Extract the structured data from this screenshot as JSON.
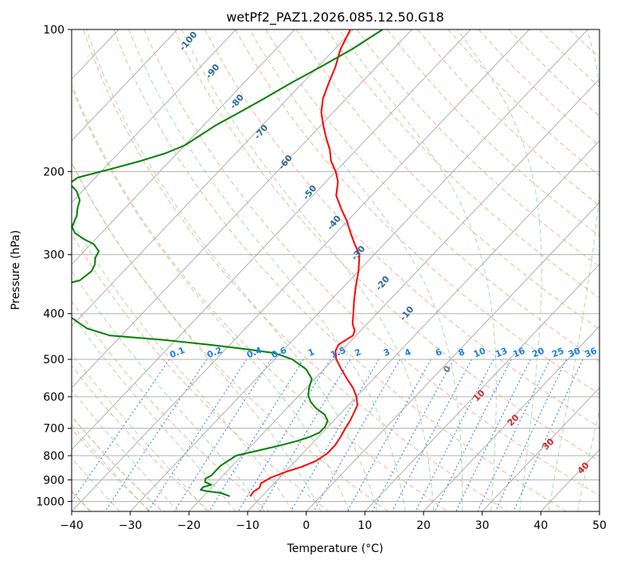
{
  "chart_data": {
    "type": "line",
    "title": "wetPf2_PAZ1.2026.085.12.50.G18",
    "xlabel": "Temperature (°C)",
    "ylabel": "Pressure (hPa)",
    "xlim": [
      -40,
      50
    ],
    "ylim": [
      1050,
      100
    ],
    "x_ticks": [
      -40,
      -30,
      -20,
      -10,
      0,
      10,
      20,
      30,
      40,
      50
    ],
    "y_ticks": [
      100,
      200,
      300,
      400,
      500,
      600,
      700,
      800,
      900,
      1000
    ],
    "grid": true,
    "skew_factor": 0.95,
    "series": [
      {
        "name": "Temperature",
        "color": "#ff0000",
        "points": [
          [
            -12,
            975
          ],
          [
            -12.2,
            955
          ],
          [
            -11.8,
            935
          ],
          [
            -12.3,
            915
          ],
          [
            -11.5,
            890
          ],
          [
            -9.8,
            865
          ],
          [
            -8,
            845
          ],
          [
            -6.5,
            820
          ],
          [
            -5.8,
            790
          ],
          [
            -5.8,
            760
          ],
          [
            -6.2,
            730
          ],
          [
            -6.8,
            700
          ],
          [
            -7.2,
            675
          ],
          [
            -7.8,
            650
          ],
          [
            -8.5,
            625
          ],
          [
            -10,
            600
          ],
          [
            -12,
            575
          ],
          [
            -14.5,
            550
          ],
          [
            -17,
            525
          ],
          [
            -19.5,
            500
          ],
          [
            -21,
            480
          ],
          [
            -21.5,
            465
          ],
          [
            -21,
            455
          ],
          [
            -20.5,
            445
          ],
          [
            -21,
            435
          ],
          [
            -22.5,
            420
          ],
          [
            -24,
            400
          ],
          [
            -26,
            375
          ],
          [
            -28,
            350
          ],
          [
            -30,
            325
          ],
          [
            -32.5,
            300
          ],
          [
            -35,
            285
          ],
          [
            -37.5,
            270
          ],
          [
            -40,
            255
          ],
          [
            -43,
            240
          ],
          [
            -46,
            225
          ],
          [
            -48,
            210
          ],
          [
            -50,
            200
          ],
          [
            -52.5,
            190
          ],
          [
            -54.5,
            180
          ],
          [
            -57,
            170
          ],
          [
            -59.5,
            160
          ],
          [
            -62,
            150
          ],
          [
            -64,
            140
          ],
          [
            -65.5,
            130
          ],
          [
            -67,
            120
          ],
          [
            -69,
            110
          ],
          [
            -70.5,
            100
          ]
        ]
      },
      {
        "name": "Dewpoint",
        "color": "#008000",
        "points": [
          [
            -15.5,
            975
          ],
          [
            -17.5,
            960
          ],
          [
            -20,
            952
          ],
          [
            -21.5,
            945
          ],
          [
            -21.5,
            932
          ],
          [
            -20.5,
            922
          ],
          [
            -22,
            910
          ],
          [
            -22.5,
            895
          ],
          [
            -22,
            880
          ],
          [
            -22,
            860
          ],
          [
            -22,
            840
          ],
          [
            -21.5,
            820
          ],
          [
            -21,
            800
          ],
          [
            -18,
            780
          ],
          [
            -15,
            760
          ],
          [
            -13,
            745
          ],
          [
            -11.5,
            730
          ],
          [
            -10.5,
            715
          ],
          [
            -10.5,
            695
          ],
          [
            -11,
            675
          ],
          [
            -12.5,
            655
          ],
          [
            -15,
            635
          ],
          [
            -17,
            615
          ],
          [
            -18.5,
            595
          ],
          [
            -19.5,
            575
          ],
          [
            -20.5,
            550
          ],
          [
            -23,
            525
          ],
          [
            -27,
            500
          ],
          [
            -31,
            485
          ],
          [
            -37,
            475
          ],
          [
            -44,
            465
          ],
          [
            -52,
            455
          ],
          [
            -62,
            445
          ],
          [
            -67,
            430
          ],
          [
            -69,
            420
          ],
          [
            -72,
            405
          ],
          [
            -78,
            400
          ],
          [
            -82,
            395
          ],
          [
            -86,
            380
          ],
          [
            -83,
            365
          ],
          [
            -79,
            350
          ],
          [
            -76,
            340
          ],
          [
            -75.5,
            325
          ],
          [
            -76,
            315
          ],
          [
            -77,
            305
          ],
          [
            -77.5,
            295
          ],
          [
            -79.5,
            285
          ],
          [
            -82,
            278
          ],
          [
            -84.5,
            270
          ],
          [
            -86,
            262
          ],
          [
            -86.5,
            255
          ],
          [
            -87,
            248
          ],
          [
            -88,
            240
          ],
          [
            -89,
            230
          ],
          [
            -91,
            220
          ],
          [
            -93.5,
            212
          ],
          [
            -93,
            206
          ],
          [
            -89,
            198
          ],
          [
            -85,
            190
          ],
          [
            -82,
            183
          ],
          [
            -80,
            176
          ],
          [
            -79,
            168
          ],
          [
            -78,
            160
          ],
          [
            -76,
            150
          ],
          [
            -74,
            140
          ],
          [
            -72,
            130
          ],
          [
            -69.5,
            120
          ],
          [
            -67,
            110
          ],
          [
            -65,
            100
          ]
        ]
      }
    ],
    "mixing_ratio_labels": [
      "0.1",
      "0.2",
      "0.4",
      "0.6",
      "1",
      "1.5",
      "2",
      "3",
      "4",
      "6",
      "8",
      "10",
      "13",
      "16",
      "20",
      "25",
      "30",
      "36"
    ],
    "moist_adiabat_labels": [
      "-100",
      "-90",
      "-80",
      "-70",
      "-60",
      "-50",
      "-40",
      "-30",
      "-20",
      "-10"
    ],
    "dry_adiabat_labels": [
      "0",
      "10",
      "20",
      "30",
      "40"
    ]
  }
}
